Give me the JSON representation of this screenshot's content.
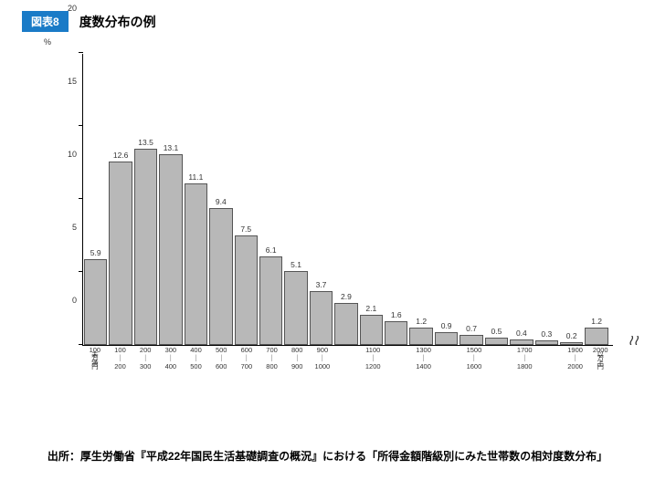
{
  "header": {
    "badge": "図表8",
    "title": "度数分布の例"
  },
  "chart": {
    "type": "bar",
    "y_unit": "%",
    "ylim": [
      0,
      20
    ],
    "y_ticks": [
      0,
      5,
      10,
      15,
      20
    ],
    "bar_color": "#b8b8b8",
    "bar_border_color": "#555555",
    "axis_color": "#000000",
    "label_fontsize": 8.5,
    "tick_fontsize": 9,
    "values": [
      5.9,
      12.6,
      13.5,
      13.1,
      11.1,
      9.4,
      7.5,
      6.1,
      5.1,
      3.7,
      2.9,
      2.1,
      1.6,
      1.2,
      0.9,
      0.7,
      0.5,
      0.4,
      0.3,
      0.2,
      1.2
    ],
    "x_labels_top": [
      "100",
      "100",
      "200",
      "300",
      "400",
      "500",
      "600",
      "700",
      "800",
      "900",
      "",
      "1100",
      "",
      "1300",
      "",
      "1500",
      "",
      "1700",
      "",
      "1900",
      "2000"
    ],
    "x_labels_mid": [
      "万",
      "｜",
      "｜",
      "｜",
      "｜",
      "｜",
      "｜",
      "｜",
      "｜",
      "｜",
      "",
      "｜",
      "",
      "｜",
      "",
      "｜",
      "",
      "｜",
      "",
      "｜",
      "万"
    ],
    "x_labels_bot": [
      "円",
      "200",
      "300",
      "400",
      "500",
      "600",
      "700",
      "800",
      "900",
      "1000",
      "",
      "1200",
      "",
      "1400",
      "",
      "1600",
      "",
      "1800",
      "",
      "2000",
      "円"
    ],
    "x_labels_extra1": [
      "未",
      "",
      "",
      "",
      "",
      "",
      "",
      "",
      "",
      "",
      "",
      "",
      "",
      "",
      "",
      "",
      "",
      "",
      "",
      "",
      "以"
    ],
    "x_labels_extra2": [
      "満",
      "",
      "",
      "",
      "",
      "",
      "",
      "",
      "",
      "",
      "",
      "",
      "",
      "",
      "",
      "",
      "",
      "",
      "",
      "",
      "上"
    ],
    "axis_break_glyph": "≀≀"
  },
  "source": "出所：厚生労働省『平成22年国民生活基礎調査の概況』における「所得金額階級別にみた世帯数の相対度数分布」"
}
